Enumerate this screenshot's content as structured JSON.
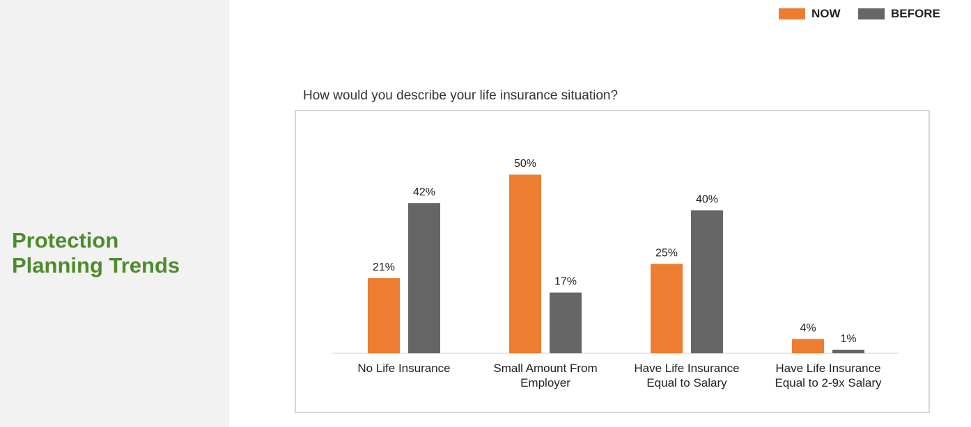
{
  "sidebar": {
    "title_line1": "Protection",
    "title_line2": "Planning Trends"
  },
  "legend": {
    "items": [
      {
        "label": "NOW",
        "color": "#ed7d31"
      },
      {
        "label": "BEFORE",
        "color": "#666666"
      }
    ]
  },
  "chart_data": {
    "type": "bar",
    "title": "How would you describe your life insurance situation?",
    "categories": [
      [
        "No Life Insurance"
      ],
      [
        "Small Amount From",
        "Employer"
      ],
      [
        "Have Life Insurance",
        "Equal to Salary"
      ],
      [
        "Have Life Insurance",
        "Equal to 2-9x Salary"
      ]
    ],
    "series": [
      {
        "name": "NOW",
        "color": "#ed7d31",
        "values": [
          21,
          50,
          25,
          4
        ],
        "labels": [
          "21%",
          "50%",
          "25%",
          "4%"
        ]
      },
      {
        "name": "BEFORE",
        "color": "#666666",
        "values": [
          42,
          17,
          40,
          1
        ],
        "labels": [
          "42%",
          "17%",
          "40%",
          "1%"
        ]
      }
    ],
    "ylim": [
      0,
      50
    ],
    "grid": false,
    "legend_position": "top-right"
  }
}
